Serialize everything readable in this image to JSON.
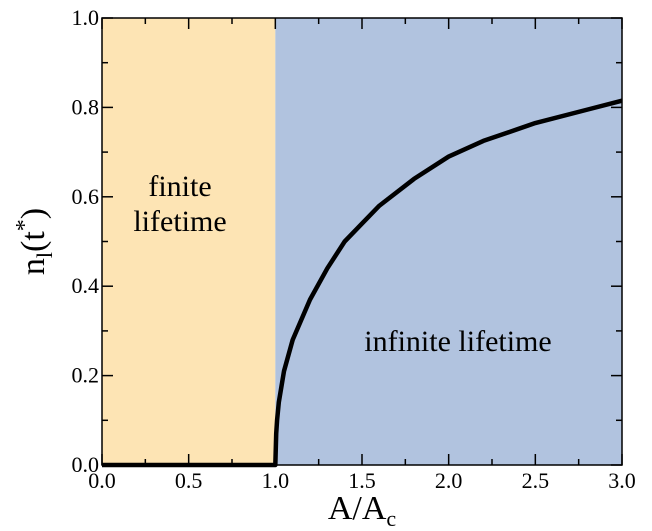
{
  "chart_data": {
    "type": "line",
    "xlabel": {
      "base": "A/A",
      "sub": "c"
    },
    "ylabel": {
      "base": "n",
      "sub": "l",
      "paren_open": "(t",
      "sup": "*",
      "paren_close": ")"
    },
    "xlim": [
      0.0,
      3.0
    ],
    "ylim": [
      0.0,
      1.0
    ],
    "xticks": [
      "0.0",
      "0.5",
      "1.0",
      "1.5",
      "2.0",
      "2.5",
      "3.0"
    ],
    "yticks": [
      "0.0",
      "0.2",
      "0.4",
      "0.6",
      "0.8",
      "1.0"
    ],
    "xtick_values": [
      0.0,
      0.5,
      1.0,
      1.5,
      2.0,
      2.5,
      3.0
    ],
    "ytick_values": [
      0.0,
      0.2,
      0.4,
      0.6,
      0.8,
      1.0
    ],
    "grid": false,
    "regions": [
      {
        "x": [
          0.0,
          1.0
        ],
        "color": "#fde4b4",
        "label_lines": [
          "finite",
          "lifetime"
        ]
      },
      {
        "x": [
          1.0,
          3.0
        ],
        "color": "#b1c3df",
        "label_lines": [
          "infinite lifetime"
        ]
      }
    ],
    "series": [
      {
        "color": "#000000",
        "x": [
          0.0,
          0.5,
          1.0,
          1.005,
          1.01,
          1.02,
          1.05,
          1.1,
          1.2,
          1.3,
          1.4,
          1.5,
          1.6,
          1.8,
          2.0,
          2.2,
          2.5,
          2.8,
          3.0
        ],
        "y": [
          0.0,
          0.0,
          0.0,
          0.07,
          0.1,
          0.14,
          0.21,
          0.28,
          0.37,
          0.44,
          0.5,
          0.54,
          0.58,
          0.64,
          0.69,
          0.725,
          0.765,
          0.795,
          0.815
        ]
      }
    ]
  }
}
